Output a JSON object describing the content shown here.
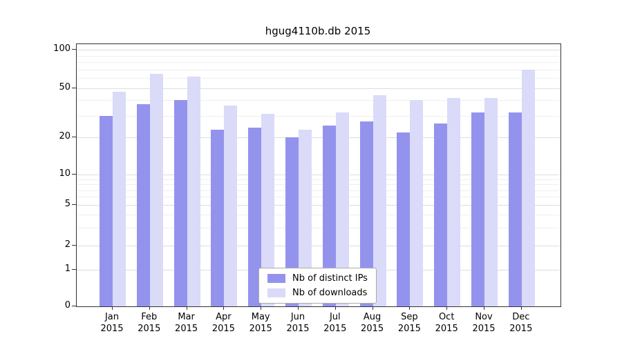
{
  "chart_data": {
    "type": "bar",
    "title": "hgug4110b.db 2015",
    "categories": [
      "Jan 2015",
      "Feb 2015",
      "Mar 2015",
      "Apr 2015",
      "May 2015",
      "Jun 2015",
      "Jul 2015",
      "Aug 2015",
      "Sep 2015",
      "Oct 2015",
      "Nov 2015",
      "Dec 2015"
    ],
    "series": [
      {
        "name": "Nb of distinct IPs",
        "color": "#9393ee",
        "values": [
          30,
          37,
          40,
          23,
          24,
          20,
          25,
          27,
          22,
          26,
          32,
          32
        ]
      },
      {
        "name": "Nb of downloads",
        "color": "#dadaf9",
        "values": [
          47,
          65,
          62,
          36,
          31,
          23,
          32,
          44,
          40,
          42,
          42,
          70
        ]
      }
    ],
    "yscale": "log",
    "ytick_values": [
      0,
      1,
      2,
      5,
      10,
      20,
      50,
      100
    ],
    "ytick_labels": [
      "0",
      "1",
      "2",
      "5",
      "10",
      "20",
      "50",
      "100"
    ],
    "ylim": [
      0,
      100
    ],
    "grid": "horizontal",
    "legend": {
      "position": "bottom-center-inside",
      "entries": [
        "Nb of distinct IPs",
        "Nb of downloads"
      ]
    }
  }
}
